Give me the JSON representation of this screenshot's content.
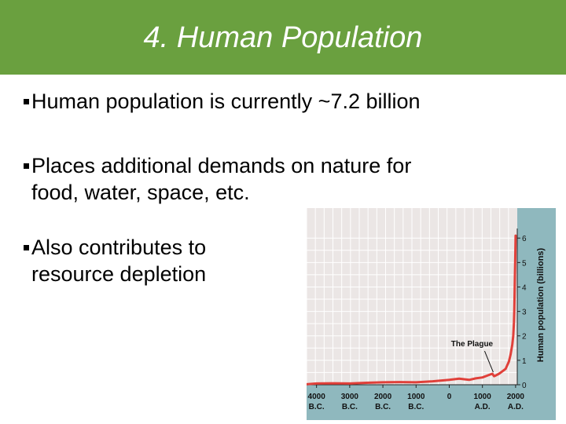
{
  "slide": {
    "title": "4. Human Population",
    "bullets": [
      {
        "text": "Human population is currently ~7.2 billion"
      },
      {
        "text": "Places additional demands on nature for",
        "text2": "food, water, space, etc."
      },
      {
        "text": "Also contributes to",
        "text2": "resource depletion"
      }
    ]
  },
  "colors": {
    "title_bar": "#6aa03f",
    "plot_bg": "#ebe6e5",
    "grid": "#ffffff",
    "axis_strip": "#8fb8be",
    "line": "#e0403a"
  },
  "chart_data": {
    "type": "line",
    "title": "",
    "ylabel": "Human population (billions)",
    "xlabel": "",
    "ylim": [
      0,
      6.2
    ],
    "xlim": [
      -4300,
      2050
    ],
    "yticks": [
      "0",
      "1",
      "2",
      "3",
      "4",
      "5",
      "6"
    ],
    "xticks": [
      {
        "x": -4000,
        "l1": "4000",
        "l2": "B.C."
      },
      {
        "x": -3000,
        "l1": "3000",
        "l2": "B.C."
      },
      {
        "x": -2000,
        "l1": "2000",
        "l2": "B.C."
      },
      {
        "x": -1000,
        "l1": "1000",
        "l2": "B.C."
      },
      {
        "x": 0,
        "l1": "0",
        "l2": ""
      },
      {
        "x": 1000,
        "l1": "1000",
        "l2": "A.D."
      },
      {
        "x": 2000,
        "l1": "2000",
        "l2": "A.D."
      }
    ],
    "grid": true,
    "annotation": {
      "text": "The Plague",
      "x": 1350,
      "y": 0.35
    },
    "series": [
      {
        "points": [
          [
            -4300,
            0.02
          ],
          [
            -4000,
            0.05
          ],
          [
            -3500,
            0.06
          ],
          [
            -3000,
            0.05
          ],
          [
            -2500,
            0.08
          ],
          [
            -2000,
            0.1
          ],
          [
            -1500,
            0.11
          ],
          [
            -1000,
            0.1
          ],
          [
            -500,
            0.14
          ],
          [
            0,
            0.2
          ],
          [
            300,
            0.25
          ],
          [
            600,
            0.2
          ],
          [
            800,
            0.26
          ],
          [
            1000,
            0.3
          ],
          [
            1200,
            0.4
          ],
          [
            1300,
            0.45
          ],
          [
            1350,
            0.35
          ],
          [
            1400,
            0.38
          ],
          [
            1500,
            0.45
          ],
          [
            1600,
            0.55
          ],
          [
            1700,
            0.65
          ],
          [
            1800,
            0.95
          ],
          [
            1850,
            1.25
          ],
          [
            1900,
            1.65
          ],
          [
            1930,
            2.0
          ],
          [
            1950,
            2.55
          ],
          [
            1960,
            3.0
          ],
          [
            1970,
            3.7
          ],
          [
            1980,
            4.45
          ],
          [
            1990,
            5.3
          ],
          [
            2000,
            6.1
          ]
        ]
      }
    ]
  }
}
